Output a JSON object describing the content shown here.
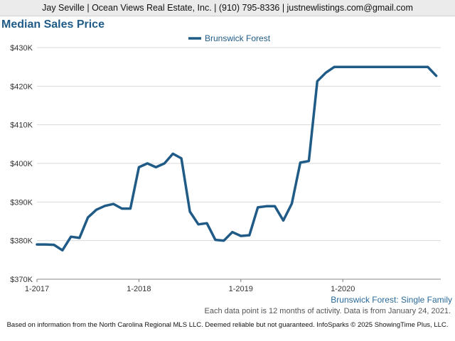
{
  "header": {
    "banner": "Jay Seville | Ocean Views Real Estate, Inc. | (910) 795-8336 | justnewlistings.com@gmail.com"
  },
  "chart_data": {
    "type": "line",
    "title": "Median Sales Price",
    "legend_position": "top",
    "grid": "horizontal",
    "series": [
      {
        "name": "Brunswick Forest",
        "color": "#1f5b86",
        "values": [
          379000,
          379000,
          378900,
          377500,
          381000,
          380700,
          386000,
          388000,
          389000,
          389500,
          388300,
          388300,
          399000,
          400000,
          399000,
          400000,
          402500,
          401300,
          387500,
          384200,
          384500,
          380200,
          380000,
          382200,
          381200,
          381400,
          388600,
          388900,
          388900,
          385200,
          389600,
          400200,
          400600,
          421300,
          423500,
          425000,
          425000,
          425000,
          425000,
          425000,
          425000,
          425000,
          425000,
          425000,
          425000,
          425000,
          425000,
          422700
        ]
      }
    ],
    "x_start": "1-2017",
    "x_ticks": [
      "1-2017",
      "1-2018",
      "1-2019",
      "1-2020"
    ],
    "y_ticks": [
      "$370K",
      "$380K",
      "$390K",
      "$400K",
      "$410K",
      "$420K",
      "$430K"
    ],
    "ylim": [
      370000,
      430000
    ],
    "subtitle": "Brunswick Forest: Single Family",
    "note": "Each data point is 12 months of activity. Data is from January 24, 2021."
  },
  "footer": {
    "text": "Based on information from the North Carolina Regional MLS LLC. Deemed reliable but not guaranteed. InfoSparks © 2025 ShowingTime Plus, LLC."
  }
}
